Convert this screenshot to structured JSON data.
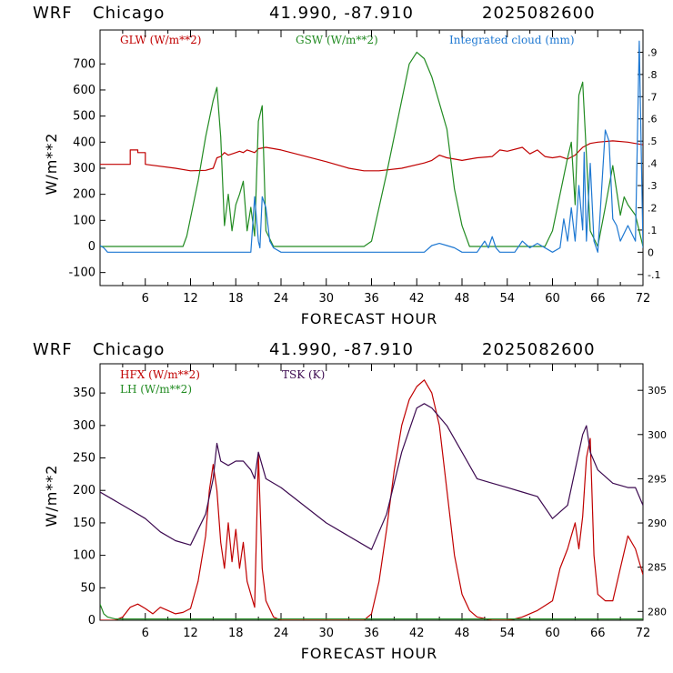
{
  "panels": [
    {
      "header": {
        "model": "WRF",
        "location": "Chicago",
        "coords": "41.990, -87.910",
        "run": "2025082600"
      },
      "xlabel": "FORECAST HOUR",
      "ylabel": "W/m**2",
      "legend": [
        {
          "label": "GLW (W/m**2)",
          "color": "#c00000"
        },
        {
          "label": "GSW (W/m**2)",
          "color": "#228b22"
        },
        {
          "label": "Integrated cloud (mm)",
          "color": "#1e78d2"
        }
      ],
      "x_ticks": [
        "6",
        "12",
        "18",
        "24",
        "30",
        "36",
        "42",
        "48",
        "54",
        "60",
        "66",
        "72"
      ],
      "y_ticks": [
        "-100",
        "0",
        "100",
        "200",
        "300",
        "400",
        "500",
        "600",
        "700"
      ],
      "right_ticks": [
        "-.1",
        "0",
        ".1",
        ".2",
        ".3",
        ".4",
        ".5",
        ".6",
        ".7",
        ".8",
        ".9"
      ]
    },
    {
      "header": {
        "model": "WRF",
        "location": "Chicago",
        "coords": "41.990, -87.910",
        "run": "2025082600"
      },
      "xlabel": "FORECAST HOUR",
      "ylabel": "W/m**2",
      "legend": [
        {
          "label": "HFX (W/m**2)",
          "color": "#c00000"
        },
        {
          "label": "LH (W/m**2)",
          "color": "#228b22"
        },
        {
          "label": "TSK (K)",
          "color": "#3c0a50"
        }
      ],
      "x_ticks": [
        "6",
        "12",
        "18",
        "24",
        "30",
        "36",
        "42",
        "48",
        "54",
        "60",
        "66",
        "72"
      ],
      "y_ticks": [
        "0",
        "50",
        "100",
        "150",
        "200",
        "250",
        "300",
        "350"
      ],
      "right_ticks": [
        "280",
        "285",
        "290",
        "295",
        "300",
        "305"
      ]
    }
  ],
  "chart_data": [
    {
      "type": "line",
      "xlim": [
        0,
        72
      ],
      "ylim": [
        -150,
        830
      ],
      "y2lim": [
        -0.15,
        1.0
      ],
      "series": [
        {
          "name": "GLW (W/m**2)",
          "color": "#c00000",
          "axis": "left",
          "x": [
            0,
            4,
            4,
            5,
            5,
            6,
            6,
            10,
            12,
            14,
            15,
            15.5,
            16,
            16.5,
            17,
            18,
            18.5,
            19,
            19.5,
            20,
            20.5,
            21,
            22,
            24,
            30,
            33,
            35,
            37,
            40,
            43,
            44,
            45,
            46,
            47,
            48,
            50,
            52,
            53,
            54,
            56,
            57,
            58,
            59,
            60,
            61,
            62,
            63,
            64,
            65,
            66,
            68,
            70,
            72
          ],
          "y": [
            315,
            315,
            370,
            370,
            360,
            360,
            315,
            300,
            290,
            292,
            300,
            340,
            345,
            360,
            350,
            360,
            365,
            360,
            370,
            365,
            360,
            375,
            380,
            370,
            325,
            300,
            290,
            290,
            300,
            320,
            330,
            350,
            340,
            335,
            330,
            340,
            345,
            370,
            365,
            380,
            355,
            370,
            345,
            340,
            345,
            335,
            350,
            380,
            395,
            400,
            405,
            400,
            390
          ]
        },
        {
          "name": "GSW (W/m**2)",
          "color": "#228b22",
          "axis": "left",
          "x": [
            0,
            11,
            11.5,
            13,
            14,
            15,
            15.5,
            16,
            16.5,
            17,
            17.5,
            18,
            18.5,
            19,
            19.5,
            20,
            20.5,
            21,
            21.5,
            22,
            23,
            24,
            35,
            36,
            38,
            40,
            41,
            42,
            43,
            44,
            46,
            47,
            48,
            49,
            59,
            60,
            61,
            62,
            62.5,
            63,
            63.5,
            64,
            64.5,
            65,
            66,
            67,
            68,
            69,
            69.5,
            70,
            71,
            72
          ],
          "y": [
            0,
            0,
            40,
            250,
            420,
            560,
            610,
            420,
            80,
            200,
            60,
            160,
            200,
            250,
            60,
            150,
            40,
            480,
            540,
            60,
            0,
            0,
            0,
            20,
            280,
            560,
            700,
            745,
            720,
            650,
            450,
            220,
            80,
            0,
            0,
            60,
            200,
            340,
            400,
            160,
            580,
            630,
            350,
            60,
            0,
            150,
            310,
            120,
            190,
            160,
            120,
            0
          ],
          "visible_only": true
        },
        {
          "name": "Integrated cloud (mm)",
          "color": "#1e78d2",
          "axis": "right",
          "x": [
            0,
            0.5,
            1,
            20,
            20.5,
            21,
            21.2,
            21.5,
            22,
            22.5,
            23,
            24,
            43,
            44,
            45,
            46,
            47,
            48,
            50,
            51,
            51.5,
            52,
            52.5,
            53,
            55,
            56,
            57,
            58,
            60,
            61,
            61.5,
            62,
            62.5,
            63,
            63.5,
            64,
            64.2,
            64.5,
            65,
            65.5,
            66,
            67,
            67.5,
            68,
            68.5,
            69,
            70,
            71,
            71.5,
            72
          ],
          "y": [
            0.03,
            0.02,
            0,
            0,
            0.25,
            0.05,
            0.02,
            0.25,
            0.2,
            0.05,
            0.02,
            0,
            0,
            0.03,
            0.04,
            0.03,
            0.02,
            0,
            0,
            0.05,
            0.02,
            0.07,
            0.02,
            0,
            0,
            0.05,
            0.02,
            0.04,
            0,
            0.02,
            0.15,
            0.05,
            0.2,
            0.05,
            0.3,
            0.1,
            0.45,
            0.05,
            0.4,
            0.05,
            0,
            0.55,
            0.5,
            0.15,
            0.12,
            0.05,
            0.12,
            0.05,
            0.95,
            0.02
          ]
        }
      ]
    },
    {
      "type": "line",
      "xlim": [
        0,
        72
      ],
      "ylim": [
        0,
        395
      ],
      "y2lim": [
        279,
        308
      ],
      "series": [
        {
          "name": "HFX (W/m**2)",
          "color": "#c00000",
          "axis": "left",
          "x": [
            0,
            1,
            2,
            3,
            4,
            5,
            6,
            7,
            8,
            9,
            10,
            11,
            12,
            13,
            14,
            14.5,
            15,
            15.5,
            16,
            16.5,
            17,
            17.5,
            18,
            18.5,
            19,
            19.5,
            20,
            20.5,
            21,
            21.5,
            22,
            23,
            24,
            27,
            30,
            33,
            35,
            36,
            37,
            38,
            39,
            40,
            41,
            42,
            43,
            44,
            45,
            46,
            47,
            48,
            49,
            50,
            52,
            54,
            55,
            56,
            58,
            60,
            61,
            62,
            62.5,
            63,
            63.5,
            64,
            64.5,
            65,
            65.5,
            66,
            67,
            68,
            69,
            70,
            71,
            72
          ],
          "y": [
            0,
            0,
            0,
            5,
            20,
            25,
            18,
            10,
            20,
            15,
            10,
            12,
            18,
            60,
            130,
            200,
            240,
            200,
            120,
            80,
            150,
            90,
            140,
            80,
            120,
            60,
            40,
            20,
            255,
            80,
            30,
            5,
            0,
            0,
            0,
            0,
            0,
            10,
            60,
            140,
            230,
            300,
            340,
            360,
            370,
            350,
            300,
            200,
            100,
            40,
            15,
            5,
            0,
            0,
            2,
            5,
            15,
            30,
            80,
            110,
            130,
            150,
            110,
            160,
            250,
            280,
            100,
            40,
            30,
            30,
            80,
            130,
            110,
            70
          ]
        },
        {
          "name": "LH (W/m**2)",
          "color": "#228b22",
          "axis": "left",
          "x": [
            0,
            0.5,
            1,
            2,
            72
          ],
          "y": [
            25,
            10,
            5,
            2,
            2
          ]
        },
        {
          "name": "TSK (K)",
          "color": "#3c0a50",
          "axis": "right",
          "x": [
            0,
            2,
            4,
            6,
            8,
            10,
            12,
            14,
            15,
            15.5,
            16,
            17,
            18,
            19,
            20,
            20.5,
            21,
            22,
            24,
            30,
            36,
            38,
            40,
            42,
            43,
            44,
            46,
            48,
            50,
            52,
            54,
            56,
            58,
            60,
            62,
            63,
            64,
            64.5,
            65,
            66,
            68,
            70,
            71,
            72
          ],
          "y": [
            293.5,
            292.5,
            291.5,
            290.5,
            289,
            288,
            287.5,
            291,
            295,
            299,
            297,
            296.5,
            297,
            297,
            296,
            295,
            298,
            295,
            294,
            290,
            287,
            291,
            298,
            303,
            303.5,
            303,
            301,
            298,
            295,
            294.5,
            294,
            293.5,
            293,
            290.5,
            292,
            296,
            300,
            301,
            298,
            296,
            294.5,
            294,
            294,
            292
          ]
        }
      ]
    }
  ]
}
